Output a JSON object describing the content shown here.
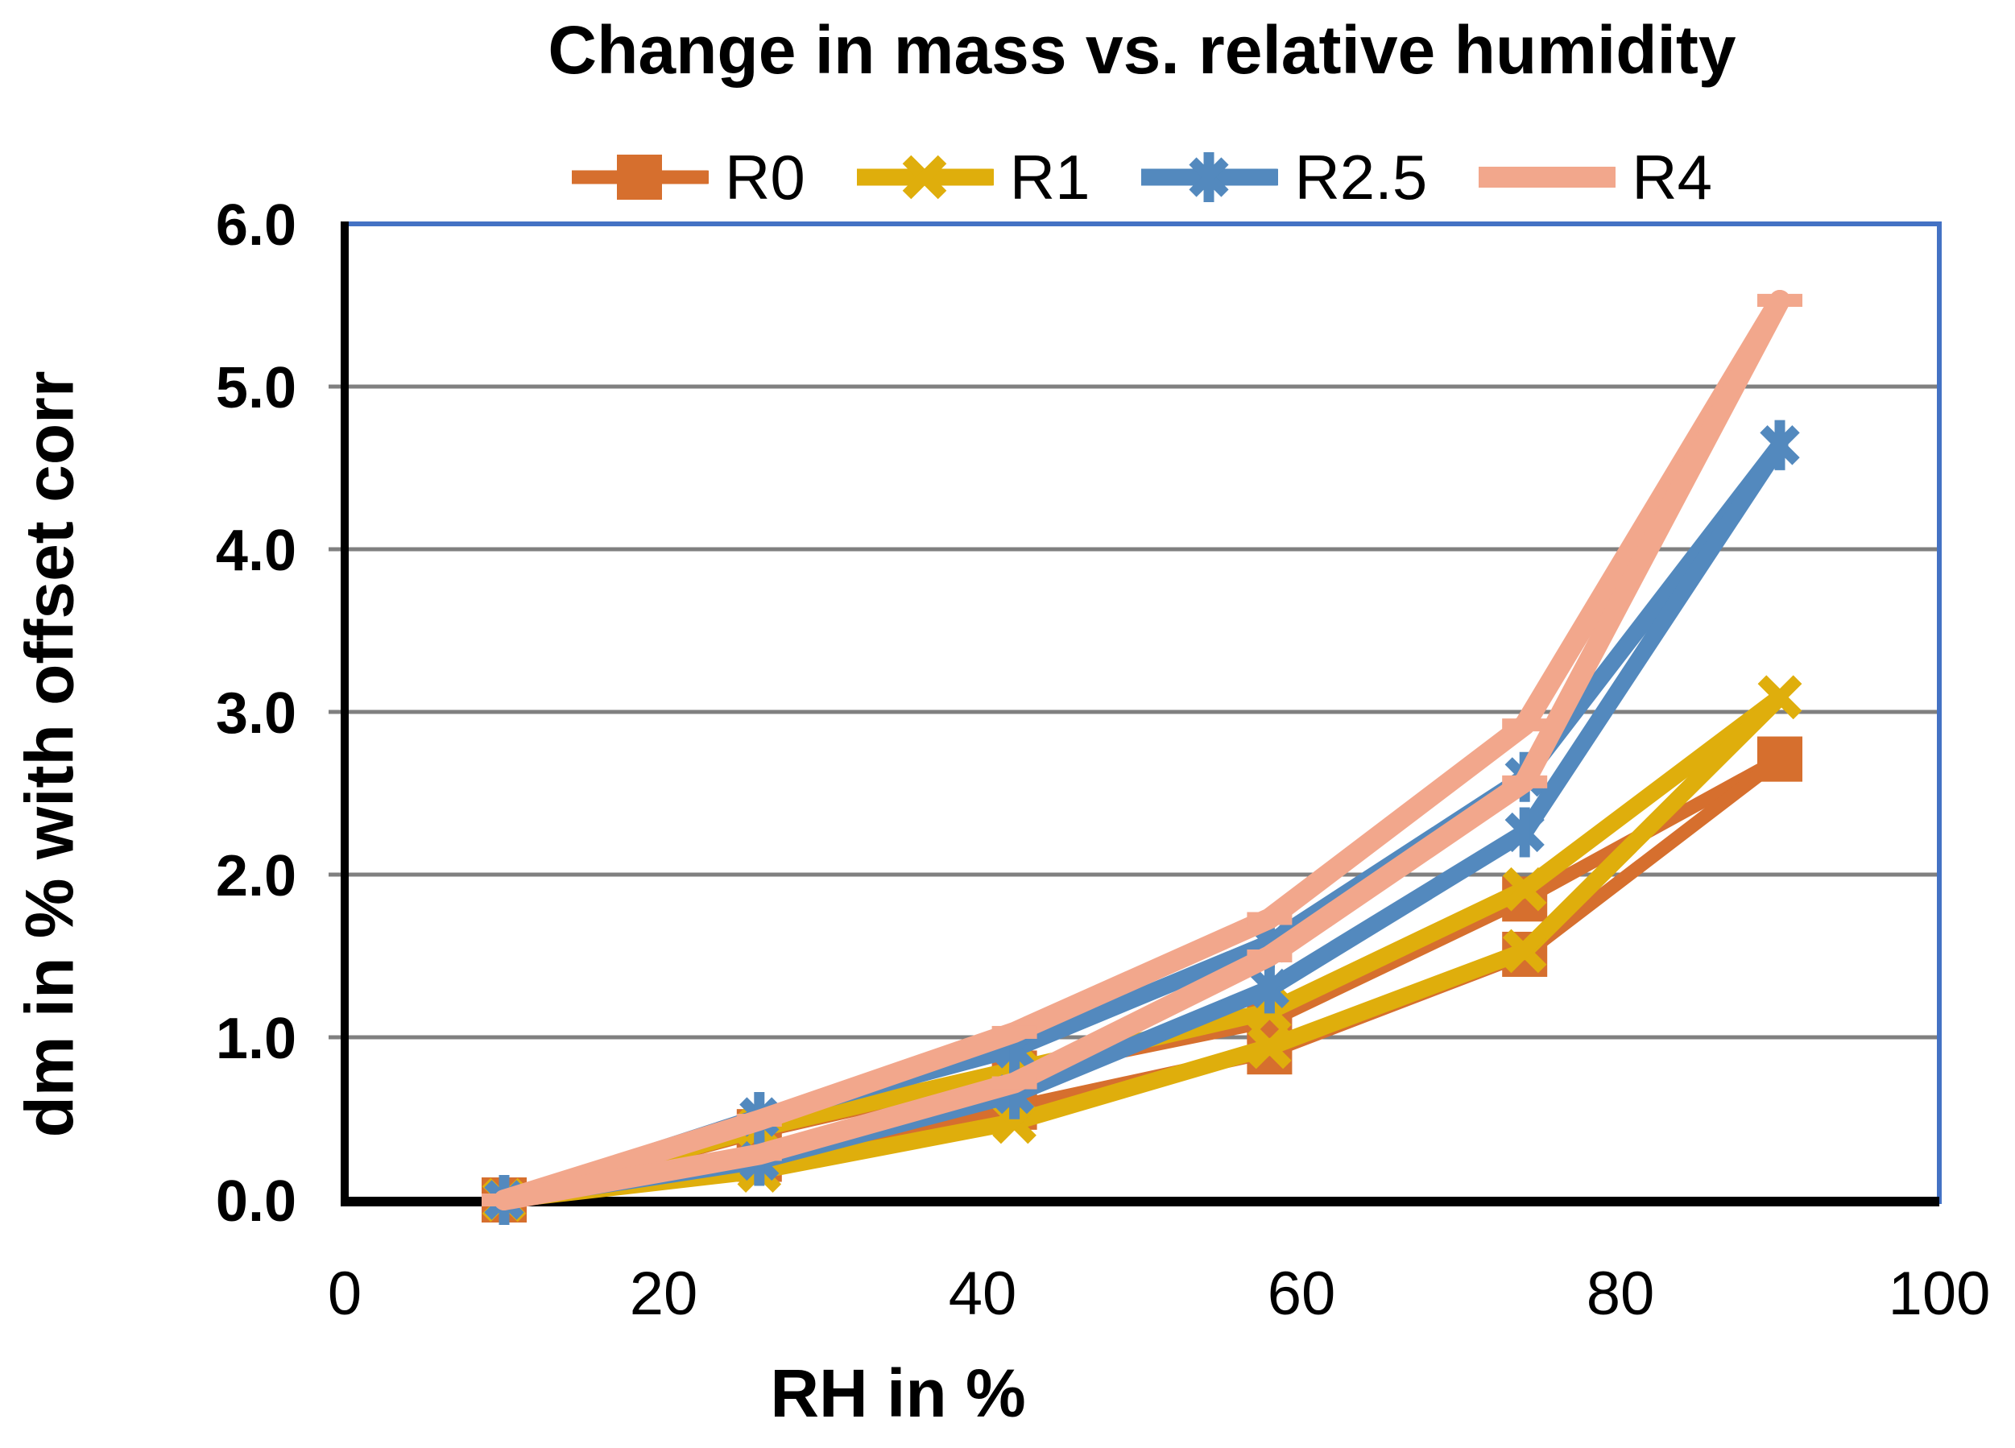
{
  "chart_data": {
    "type": "line",
    "title": "Change in mass vs. relative humidity",
    "xlabel": "RH in %",
    "ylabel": "dm in % with offset corr",
    "xlim": [
      0,
      100
    ],
    "ylim": [
      0.0,
      6.0
    ],
    "grid": "horizontal-gray",
    "legend_position": "top",
    "x_ticks": [
      0,
      20,
      40,
      60,
      80,
      100
    ],
    "y_tick_labels": [
      "0.0",
      "1.0",
      "2.0",
      "3.0",
      "4.0",
      "5.0",
      "6.0"
    ],
    "x": [
      10,
      26,
      42,
      58,
      74,
      90
    ],
    "series": [
      {
        "name": "R0",
        "color": "#D66F2E",
        "marker": "square",
        "line_width": 17,
        "runs": [
          [
            0.0,
            0.42,
            0.78,
            1.1,
            1.85,
            2.71
          ],
          [
            0.0,
            0.25,
            0.57,
            0.91,
            1.51,
            2.71
          ]
        ]
      },
      {
        "name": "R1",
        "color": "#DFAE0C",
        "marker": "x",
        "line_width": 21,
        "runs": [
          [
            0.0,
            0.44,
            0.8,
            1.16,
            1.91,
            3.09
          ],
          [
            0.0,
            0.18,
            0.48,
            0.94,
            1.53,
            3.09
          ]
        ]
      },
      {
        "name": "R2.5",
        "color": "#5389BE",
        "marker": "asterisk",
        "line_width": 21,
        "runs": [
          [
            0.0,
            0.51,
            0.93,
            1.58,
            2.6,
            4.64
          ],
          [
            0.0,
            0.24,
            0.65,
            1.3,
            2.26,
            4.64
          ]
        ]
      },
      {
        "name": "R4",
        "color": "#F2A78C",
        "marker": "dash",
        "line_width": 26,
        "runs": [
          [
            0.0,
            0.49,
            1.03,
            1.73,
            2.92,
            5.53
          ],
          [
            0.0,
            0.28,
            0.72,
            1.5,
            2.57,
            5.53
          ]
        ]
      }
    ],
    "colors": {
      "frame": "#4472C4",
      "grid": "#808080",
      "axis": "#000000"
    }
  }
}
